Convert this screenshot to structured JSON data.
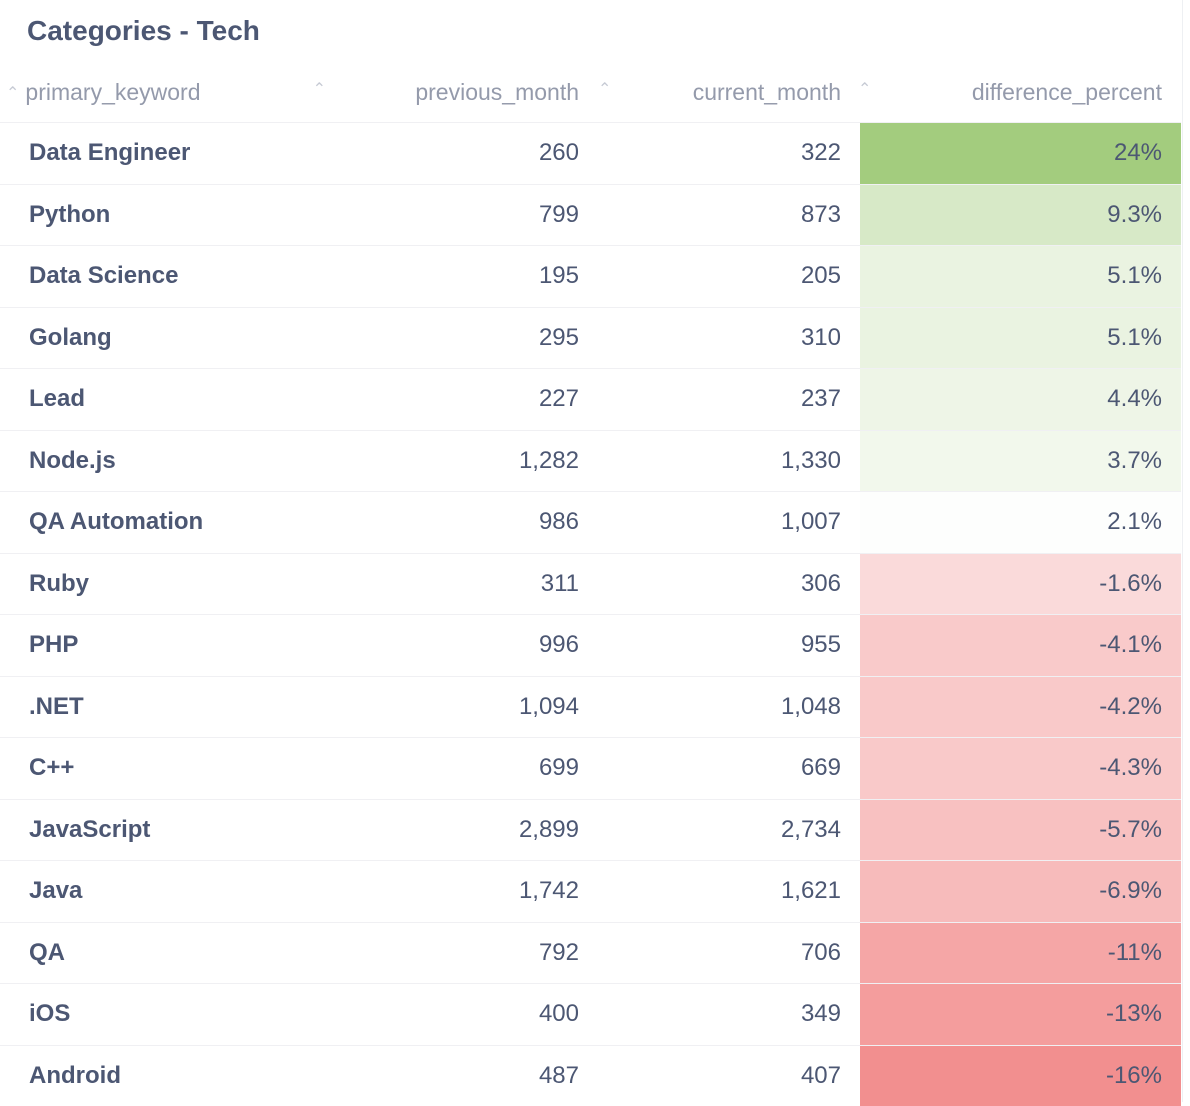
{
  "title": "Categories - Tech",
  "colors": {
    "positive": "#a3cc7e",
    "negative": "#f28f8f",
    "neutral": "#ffffff"
  },
  "chart_data": {
    "type": "table",
    "columns": [
      "primary_keyword",
      "previous_month",
      "current_month",
      "difference_percent"
    ],
    "rows": [
      {
        "primary_keyword": "Data Engineer",
        "previous_month": "260",
        "current_month": "322",
        "difference_percent": "24%",
        "value": 24
      },
      {
        "primary_keyword": "Python",
        "previous_month": "799",
        "current_month": "873",
        "difference_percent": "9.3%",
        "value": 9.3
      },
      {
        "primary_keyword": "Data Science",
        "previous_month": "195",
        "current_month": "205",
        "difference_percent": "5.1%",
        "value": 5.1
      },
      {
        "primary_keyword": "Golang",
        "previous_month": "295",
        "current_month": "310",
        "difference_percent": "5.1%",
        "value": 5.1
      },
      {
        "primary_keyword": "Lead",
        "previous_month": "227",
        "current_month": "237",
        "difference_percent": "4.4%",
        "value": 4.4
      },
      {
        "primary_keyword": "Node.js",
        "previous_month": "1,282",
        "current_month": "1,330",
        "difference_percent": "3.7%",
        "value": 3.7
      },
      {
        "primary_keyword": "QA Automation",
        "previous_month": "986",
        "current_month": "1,007",
        "difference_percent": "2.1%",
        "value": 2.1
      },
      {
        "primary_keyword": "Ruby",
        "previous_month": "311",
        "current_month": "306",
        "difference_percent": "-1.6%",
        "value": -1.6
      },
      {
        "primary_keyword": "PHP",
        "previous_month": "996",
        "current_month": "955",
        "difference_percent": "-4.1%",
        "value": -4.1
      },
      {
        "primary_keyword": ".NET",
        "previous_month": "1,094",
        "current_month": "1,048",
        "difference_percent": "-4.2%",
        "value": -4.2
      },
      {
        "primary_keyword": "C++",
        "previous_month": "699",
        "current_month": "669",
        "difference_percent": "-4.3%",
        "value": -4.3
      },
      {
        "primary_keyword": "JavaScript",
        "previous_month": "2,899",
        "current_month": "2,734",
        "difference_percent": "-5.7%",
        "value": -5.7
      },
      {
        "primary_keyword": "Java",
        "previous_month": "1,742",
        "current_month": "1,621",
        "difference_percent": "-6.9%",
        "value": -6.9
      },
      {
        "primary_keyword": "QA",
        "previous_month": "792",
        "current_month": "706",
        "difference_percent": "-11%",
        "value": -11
      },
      {
        "primary_keyword": "iOS",
        "previous_month": "400",
        "current_month": "349",
        "difference_percent": "-13%",
        "value": -13
      },
      {
        "primary_keyword": "Android",
        "previous_month": "487",
        "current_month": "407",
        "difference_percent": "-16%",
        "value": -16
      }
    ]
  }
}
